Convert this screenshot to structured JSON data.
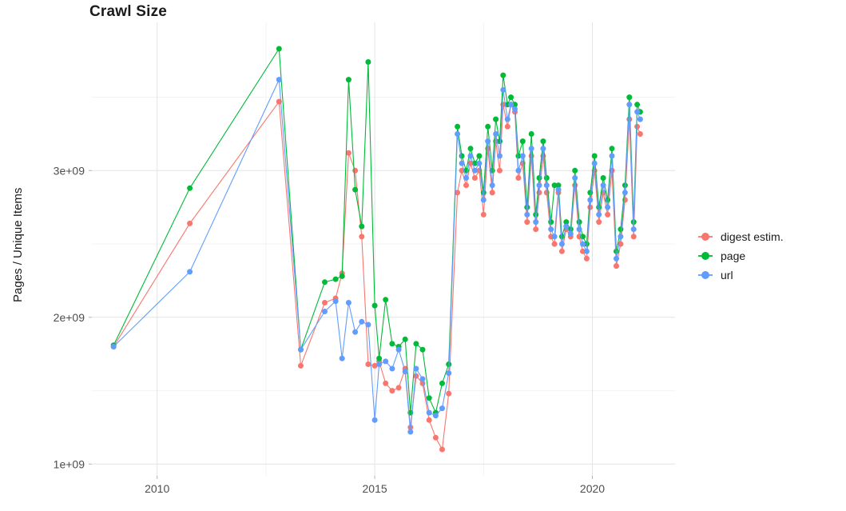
{
  "title": "Crawl Size",
  "axes": {
    "y_label": "Pages / Unique Items",
    "y_ticks": [
      {
        "value": 1,
        "label": "1e+09"
      },
      {
        "value": 2,
        "label": "2e+09"
      },
      {
        "value": 3,
        "label": "3e+09"
      }
    ],
    "x_ticks": [
      {
        "value": 2010,
        "label": "2010"
      },
      {
        "value": 2015,
        "label": "2015"
      },
      {
        "value": 2020,
        "label": "2020"
      }
    ]
  },
  "legend": {
    "items": [
      {
        "label": "digest estim.",
        "color": "#F8766D"
      },
      {
        "label": "page",
        "color": "#00BA38"
      },
      {
        "label": "url",
        "color": "#619CFF"
      }
    ]
  },
  "chart_data": {
    "type": "line",
    "title": "Crawl Size",
    "xlabel": "",
    "ylabel": "Pages / Unique Items",
    "x_unit": "decimal year (crawl date)",
    "values_unit": "1e+09 pages (billions); multiply by 1e9 for absolute counts",
    "xlim": [
      2008.5,
      2021.9
    ],
    "ylim": [
      0.92,
      4.01
    ],
    "grid": true,
    "legend_position": "right",
    "x_minor_breaks": [
      2012.5,
      2017.5
    ],
    "y_minor_breaks": [
      1.5,
      2.5,
      3.5
    ],
    "x": [
      2009.0,
      2010.75,
      2012.8,
      2013.3,
      2013.85,
      2014.1,
      2014.25,
      2014.4,
      2014.55,
      2014.7,
      2014.85,
      2015.0,
      2015.1,
      2015.25,
      2015.4,
      2015.55,
      2015.7,
      2015.82,
      2015.95,
      2016.1,
      2016.25,
      2016.4,
      2016.55,
      2016.7,
      2016.9,
      2017.0,
      2017.1,
      2017.2,
      2017.3,
      2017.4,
      2017.5,
      2017.6,
      2017.7,
      2017.78,
      2017.87,
      2017.95,
      2018.05,
      2018.13,
      2018.22,
      2018.3,
      2018.4,
      2018.5,
      2018.6,
      2018.7,
      2018.78,
      2018.87,
      2018.95,
      2019.05,
      2019.13,
      2019.22,
      2019.3,
      2019.4,
      2019.5,
      2019.6,
      2019.7,
      2019.78,
      2019.87,
      2019.95,
      2020.05,
      2020.15,
      2020.25,
      2020.35,
      2020.45,
      2020.55,
      2020.65,
      2020.75,
      2020.85,
      2020.95,
      2021.03,
      2021.1
    ],
    "series": [
      {
        "name": "digest estim.",
        "color": "#F8766D",
        "values": [
          1.8,
          2.64,
          3.47,
          1.67,
          2.1,
          2.13,
          2.3,
          3.12,
          3.0,
          2.55,
          1.68,
          1.67,
          1.7,
          1.55,
          1.5,
          1.52,
          1.65,
          1.25,
          1.6,
          1.55,
          1.3,
          1.18,
          1.1,
          1.48,
          2.85,
          3.0,
          2.9,
          3.05,
          2.95,
          3.0,
          2.7,
          3.15,
          2.85,
          3.2,
          3.0,
          3.45,
          3.3,
          3.45,
          3.4,
          2.95,
          3.05,
          2.65,
          3.1,
          2.6,
          2.85,
          3.1,
          2.85,
          2.55,
          2.5,
          2.85,
          2.45,
          2.6,
          2.55,
          2.9,
          2.55,
          2.45,
          2.4,
          2.75,
          3.0,
          2.65,
          2.85,
          2.7,
          3.0,
          2.35,
          2.5,
          2.8,
          3.35,
          2.55,
          3.3,
          3.25
        ]
      },
      {
        "name": "page",
        "color": "#00BA38",
        "values": [
          1.81,
          2.88,
          3.83,
          1.78,
          2.24,
          2.26,
          2.28,
          3.62,
          2.87,
          2.62,
          3.74,
          2.08,
          1.72,
          2.12,
          1.82,
          1.8,
          1.85,
          1.35,
          1.82,
          1.78,
          1.45,
          1.35,
          1.55,
          1.68,
          3.3,
          3.1,
          3.0,
          3.15,
          3.05,
          3.1,
          2.85,
          3.3,
          3.0,
          3.35,
          3.2,
          3.65,
          3.45,
          3.5,
          3.45,
          3.1,
          3.2,
          2.75,
          3.25,
          2.7,
          2.95,
          3.2,
          2.95,
          2.65,
          2.9,
          2.9,
          2.55,
          2.65,
          2.6,
          3.0,
          2.65,
          2.55,
          2.5,
          2.85,
          3.1,
          2.75,
          2.95,
          2.8,
          3.15,
          2.45,
          2.6,
          2.9,
          3.5,
          2.65,
          3.45,
          3.4
        ]
      },
      {
        "name": "url",
        "color": "#619CFF",
        "values": [
          1.8,
          2.31,
          3.62,
          1.78,
          2.04,
          2.11,
          1.72,
          2.1,
          1.9,
          1.97,
          1.95,
          1.3,
          1.68,
          1.7,
          1.65,
          1.78,
          1.63,
          1.22,
          1.65,
          1.58,
          1.35,
          1.33,
          1.38,
          1.62,
          3.25,
          3.05,
          2.95,
          3.1,
          3.0,
          3.05,
          2.8,
          3.2,
          2.9,
          3.25,
          3.1,
          3.55,
          3.35,
          3.45,
          3.42,
          3.0,
          3.1,
          2.7,
          3.15,
          2.65,
          2.9,
          3.15,
          2.9,
          2.6,
          2.55,
          2.87,
          2.5,
          2.62,
          2.57,
          2.95,
          2.6,
          2.5,
          2.45,
          2.8,
          3.05,
          2.7,
          2.9,
          2.75,
          3.1,
          2.4,
          2.55,
          2.85,
          3.45,
          2.6,
          3.4,
          3.35
        ]
      }
    ]
  }
}
